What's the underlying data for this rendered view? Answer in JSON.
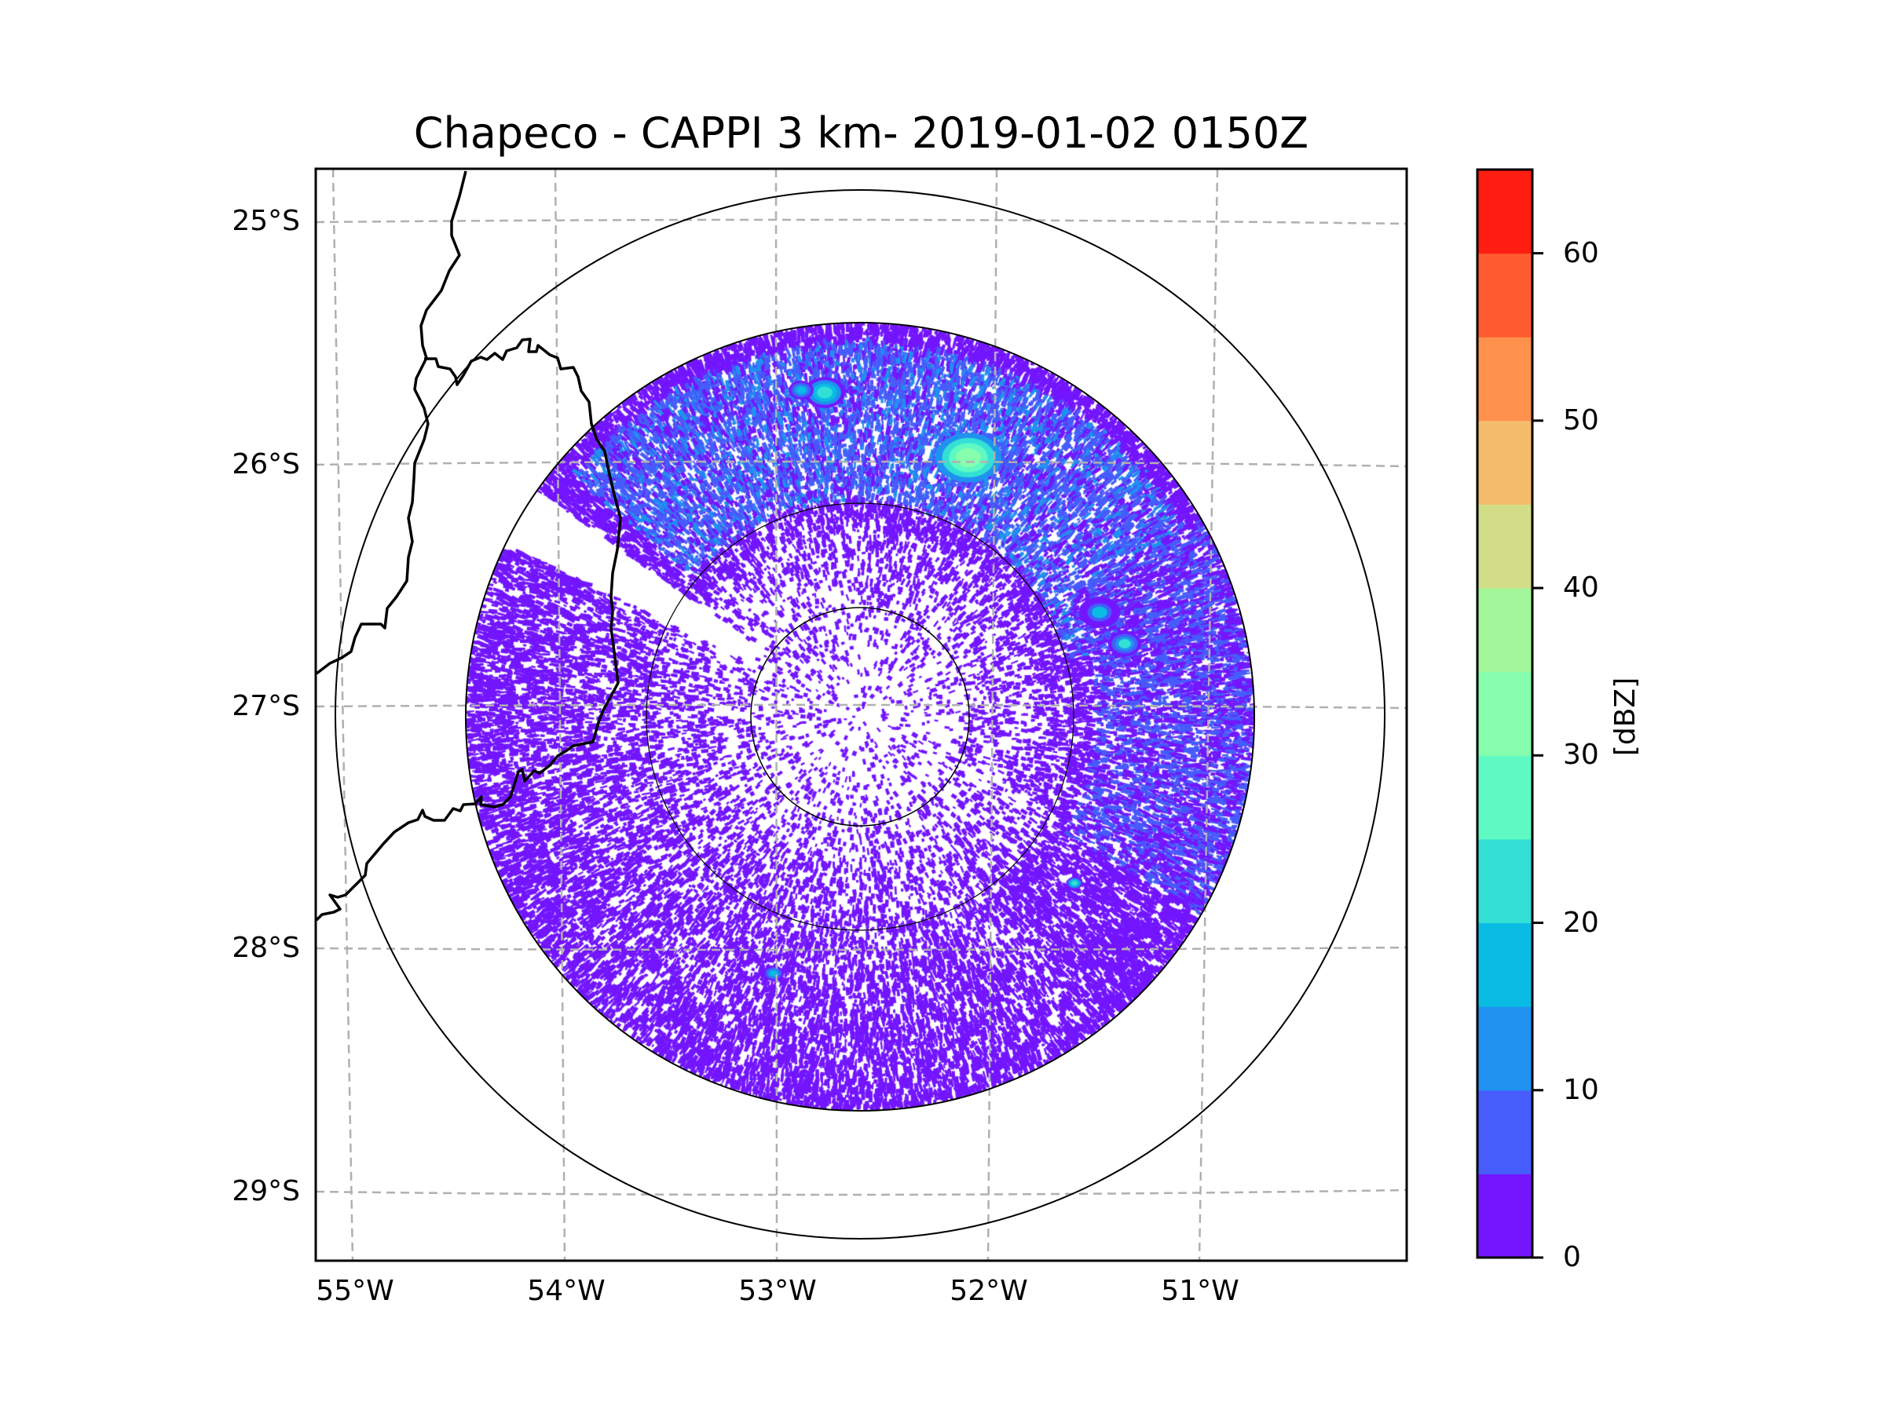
{
  "title": "Chapeco - CAPPI 3 km- 2019-01-02 0150Z",
  "chart_data": {
    "type": "heatmap",
    "subtype": "radar-ppi-map",
    "title": "Chapeco - CAPPI 3 km- 2019-01-02 0150Z",
    "radar_site": "Chapeco",
    "product": "CAPPI",
    "altitude_km": 3,
    "datetime": "2019-01-02 0150Z",
    "xlabel": "",
    "ylabel": "",
    "x_ticks": [
      "55°W",
      "54°W",
      "53°W",
      "52°W",
      "51°W"
    ],
    "x_tick_values": [
      -55,
      -54,
      -53,
      -52,
      -51
    ],
    "y_ticks": [
      "25°S",
      "26°S",
      "27°S",
      "28°S",
      "29°S"
    ],
    "y_tick_values": [
      -25,
      -26,
      -27,
      -28,
      -29
    ],
    "xlim": [
      -55.2,
      -50.1
    ],
    "ylim": [
      -29.3,
      -24.8
    ],
    "grid": true,
    "range_rings": 4,
    "colorbar": {
      "label": "[dBZ]",
      "min": 0,
      "max": 65,
      "step": 5,
      "ticks": [
        0,
        10,
        20,
        30,
        40,
        50,
        60
      ],
      "tick_labels": [
        "0",
        "10",
        "20",
        "30",
        "40",
        "50",
        "60"
      ],
      "colors": [
        "#7316fe",
        "#465cfb",
        "#1f91ef",
        "#0abce4",
        "#33e0d5",
        "#5ffac4",
        "#86fead",
        "#a1f79a",
        "#d1de87",
        "#f3bd6c",
        "#ff914d",
        "#ff5b30",
        "#ff1c10"
      ],
      "placement": "right"
    },
    "observations": {
      "dominant_range_dbz": [
        0,
        10
      ],
      "max_echo_dbz_approx": 40,
      "max_echo_location": "near 26°S, 52.1°W",
      "notes": "Widespread weak echoes (0-10 dBZ) with stronger 10-20 dBZ band in the north sector; data gap sector to the northwest."
    }
  },
  "axes": {
    "x_tick_labels": [
      "55°W",
      "54°W",
      "53°W",
      "52°W",
      "51°W"
    ],
    "y_tick_labels": [
      "25°S",
      "26°S",
      "27°S",
      "28°S",
      "29°S"
    ]
  },
  "colorbar": {
    "label": "[dBZ]",
    "tick_labels": [
      "0",
      "10",
      "20",
      "30",
      "40",
      "50",
      "60"
    ]
  }
}
